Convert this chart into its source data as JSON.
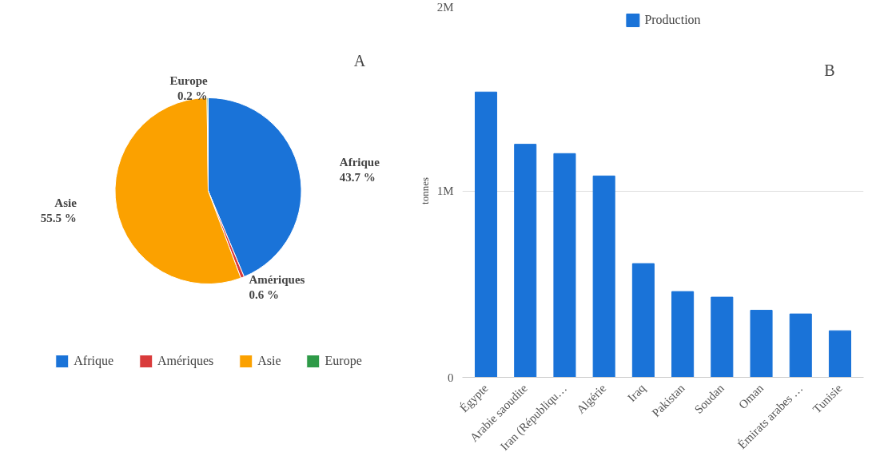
{
  "chart_data": [
    {
      "type": "pie",
      "categories": [
        "Afrique",
        "Amériques",
        "Asie",
        "Europe"
      ],
      "values": [
        43.7,
        0.6,
        55.5,
        0.2
      ],
      "colors": [
        "#1a73d8",
        "#d93b3b",
        "#fba100",
        "#2e9a47"
      ],
      "value_labels": [
        "43.7 %",
        "0.6 %",
        "55.5 %",
        "0.2 %"
      ],
      "legend": "bottom",
      "annotations": [
        "A"
      ]
    },
    {
      "type": "bar",
      "categories": [
        "Égypte",
        "Arabie saoudite",
        "Iran (Républiqu…",
        "Algérie",
        "Iraq",
        "Pakistan",
        "Soudan",
        "Oman",
        "Émirats arabes …",
        "Tunisie"
      ],
      "series": [
        {
          "name": "Production",
          "color": "#1a73d8",
          "values": [
            1530000,
            1250000,
            1200000,
            1080000,
            610000,
            460000,
            430000,
            360000,
            340000,
            250000
          ]
        }
      ],
      "ylabel": "tonnes",
      "ylim": [
        0,
        2000000
      ],
      "yticks": [
        0,
        {
          "value": 1000000,
          "label": "1M"
        },
        {
          "value": 2000000,
          "label": "2M"
        }
      ],
      "grid": "y",
      "legend": "top",
      "annotations": [
        "B"
      ]
    }
  ]
}
